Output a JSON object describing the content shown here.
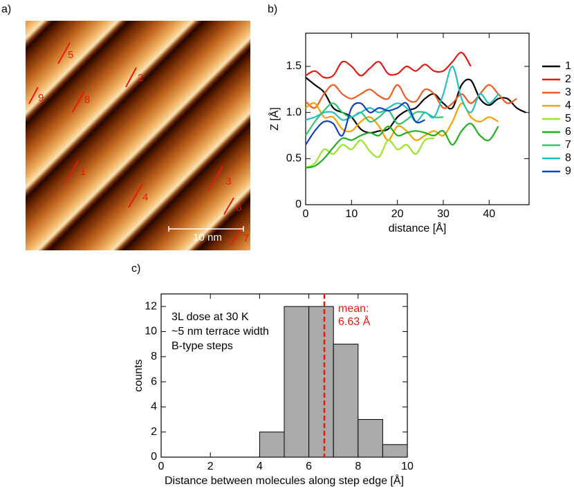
{
  "image_panel": {
    "panel_label": "a)",
    "markers": [
      "1",
      "2",
      "3",
      "4",
      "5",
      "6",
      "7",
      "8",
      "9"
    ],
    "scale_bar": "10 nm"
  },
  "chart_data": [
    {
      "type": "line",
      "panel_label": "b)",
      "xlabel": "distance [Å]",
      "ylabel": "Z [Å]",
      "x": [
        0,
        2,
        4,
        6,
        8,
        10,
        12,
        14,
        16,
        18,
        20,
        22,
        24,
        26,
        28,
        30,
        32,
        34,
        36,
        38,
        40,
        42,
        44,
        46,
        48
      ],
      "xlim": [
        0,
        48.7
      ],
      "ylim": [
        0,
        1.86
      ],
      "xticks": [
        0,
        10,
        20,
        30,
        40
      ],
      "yticks": [
        0,
        0.5,
        {
          "value": 1,
          "label": "1.0"
        },
        1.5
      ],
      "series": [
        {
          "name": "1",
          "color": "#000000",
          "values": [
            1.38,
            1.3,
            1.22,
            1.05,
            1.0,
            0.95,
            0.82,
            0.78,
            0.8,
            0.82,
            0.95,
            1.02,
            1.05,
            1.15,
            1.2,
            1.1,
            1.05,
            1.3,
            1.35,
            1.15,
            1.08,
            1.15,
            1.15,
            1.05,
            1.0
          ]
        },
        {
          "name": "2",
          "color": "#e8180c",
          "values": [
            1.4,
            1.45,
            1.38,
            1.4,
            1.55,
            1.5,
            1.4,
            1.48,
            1.55,
            1.42,
            1.42,
            1.5,
            1.45,
            1.52,
            1.45,
            1.45,
            1.55,
            1.65,
            1.5,
            null,
            null,
            null,
            null,
            null,
            null
          ]
        },
        {
          "name": "3",
          "color": "#f05a1e",
          "values": [
            1.12,
            1.05,
            1.2,
            1.3,
            1.2,
            1.15,
            1.2,
            1.25,
            1.18,
            1.15,
            1.3,
            1.15,
            1.12,
            1.25,
            1.2,
            1.05,
            1.1,
            1.2,
            1.1,
            1.2,
            1.3,
            1.2,
            1.1,
            1.15,
            null
          ]
        },
        {
          "name": "4",
          "color": "#f5a000",
          "values": [
            1.05,
            1.1,
            0.95,
            0.95,
            0.82,
            0.8,
            0.9,
            0.95,
            0.85,
            0.7,
            0.85,
            0.8,
            0.7,
            0.75,
            0.8,
            0.75,
            0.9,
            1.1,
            0.95,
            0.9,
            0.95,
            0.9,
            null,
            null,
            null
          ]
        },
        {
          "name": "5",
          "color": "#98e628",
          "values": [
            0.4,
            0.45,
            0.6,
            0.55,
            0.65,
            0.6,
            0.7,
            0.58,
            0.52,
            0.7,
            0.6,
            0.65,
            0.55,
            0.7,
            0.72,
            null,
            null,
            null,
            null,
            null,
            null,
            null,
            null,
            null,
            null
          ]
        },
        {
          "name": "6",
          "color": "#1fae1f",
          "values": [
            0.4,
            0.42,
            0.5,
            0.62,
            0.72,
            0.7,
            0.75,
            0.78,
            0.75,
            0.85,
            0.75,
            0.78,
            0.8,
            0.78,
            0.75,
            0.8,
            0.65,
            0.8,
            0.88,
            0.75,
            0.7,
            0.85,
            null,
            null,
            null
          ]
        },
        {
          "name": "7",
          "color": "#2ec46a",
          "values": [
            0.75,
            0.9,
            1.02,
            1.1,
            1.0,
            0.95,
            1.0,
            0.9,
            0.95,
            1.02,
            0.88,
            0.92,
            1.0,
            1.0,
            0.95,
            0.95,
            null,
            null,
            null,
            null,
            null,
            null,
            null,
            null,
            null
          ]
        },
        {
          "name": "8",
          "color": "#1fc2c2",
          "values": [
            0.92,
            0.95,
            1.0,
            1.0,
            0.92,
            0.95,
            1.0,
            1.05,
            1.0,
            1.05,
            1.1,
            1.05,
            0.9,
            1.0,
            0.95,
            1.2,
            1.5,
            1.15,
            1.0,
            1.2,
            1.1,
            1.2,
            null,
            null,
            null
          ]
        },
        {
          "name": "9",
          "color": "#1040c0",
          "values": [
            0.65,
            0.8,
            0.9,
            0.88,
            0.75,
            1.05,
            1.1,
            1.0,
            1.05,
            1.02,
            1.05,
            1.1,
            0.9,
            0.92,
            null,
            null,
            null,
            null,
            null,
            null,
            null,
            null,
            null,
            null,
            null
          ]
        }
      ]
    },
    {
      "type": "histogram",
      "panel_label": "c)",
      "xlabel": "Distance between molecules along step edge [Å]",
      "ylabel": "counts",
      "bins": [
        0,
        1,
        2,
        3,
        4,
        5,
        6,
        7,
        8,
        9,
        10
      ],
      "values": [
        0,
        0,
        0,
        0,
        2,
        12,
        12,
        9,
        3,
        1
      ],
      "color": "#aaaaaa",
      "xlim": [
        0,
        10
      ],
      "ylim": [
        0,
        13
      ],
      "xticks": [
        0,
        2,
        4,
        6,
        8,
        10
      ],
      "yticks": [
        0,
        2,
        4,
        6,
        8,
        10,
        12
      ],
      "mean": 6.63,
      "mean_color": "#e8180c",
      "mean_labels": [
        "mean:",
        "6.63 Å"
      ],
      "notes": [
        "3L dose at 30 K",
        "~5 nm terrace width",
        "B-type steps"
      ]
    }
  ]
}
